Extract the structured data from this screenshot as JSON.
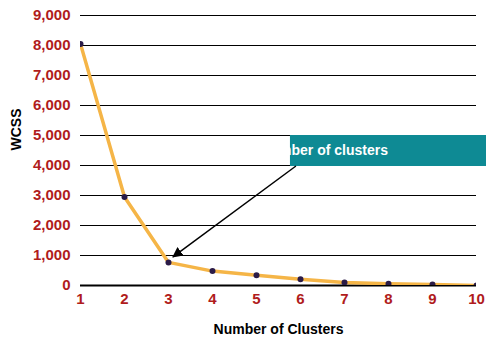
{
  "chart_data": {
    "type": "line",
    "x": [
      1,
      2,
      3,
      4,
      5,
      6,
      7,
      8,
      9,
      10
    ],
    "values": [
      8050,
      2950,
      770,
      480,
      340,
      210,
      100,
      60,
      30,
      0
    ],
    "color": "#f5b547",
    "marker": "circle",
    "xlabel": "Number of Clusters",
    "ylabel": "WCSS",
    "xlim": [
      1,
      10
    ],
    "xticks": [
      1,
      2,
      3,
      4,
      5,
      6,
      7,
      8,
      9,
      10
    ],
    "ylim": [
      0,
      9000
    ],
    "yticks": [
      0,
      1000,
      2000,
      3000,
      4000,
      5000,
      6000,
      7000,
      8000,
      9000
    ],
    "grid": true,
    "annotations": [
      {
        "text": "Optimal number of clusters",
        "x": 3,
        "y": 770
      }
    ]
  }
}
